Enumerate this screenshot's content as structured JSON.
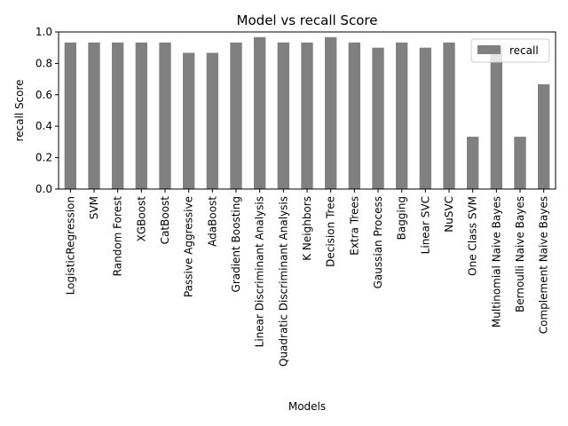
{
  "chart_data": {
    "type": "bar",
    "title": "Model vs recall Score",
    "xlabel": "Models",
    "ylabel": "recall Score",
    "ylim": [
      0,
      1.0
    ],
    "yticks": [
      0.0,
      0.2,
      0.4,
      0.6,
      0.8,
      1.0
    ],
    "ytick_labels": [
      "0.0",
      "0.2",
      "0.4",
      "0.6",
      "0.8",
      "1.0"
    ],
    "grid": false,
    "legend_position": "top-right",
    "bar_color": "#808080",
    "categories": [
      "LogisticRegression",
      "SVM",
      "Random Forest",
      "XGBoost",
      "CatBoost",
      "Passive Aggressive",
      "AdaBoost",
      "Gradient Boosting",
      "Linear Discriminant Analysis",
      "Quadratic Discriminant Analysis",
      "K Neighbors",
      "Decision Tree",
      "Extra Trees",
      "Gaussian Process",
      "Bagging",
      "Linear SVC",
      "NuSVC",
      "One Class SVM",
      "Multinomial Naive Bayes",
      "Bernoulli Naive Bayes",
      "Complement Naive Bayes"
    ],
    "series": [
      {
        "name": "recall",
        "values": [
          0.933,
          0.933,
          0.933,
          0.933,
          0.933,
          0.867,
          0.867,
          0.933,
          0.967,
          0.933,
          0.933,
          0.967,
          0.933,
          0.9,
          0.933,
          0.9,
          0.933,
          0.333,
          0.9,
          0.333,
          0.667
        ]
      }
    ]
  }
}
